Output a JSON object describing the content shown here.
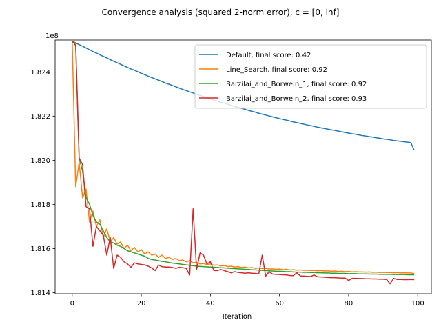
{
  "chart_data": {
    "type": "line",
    "title": "Convergence analysis (squared 2-norm error), c = [0, inf]",
    "xlabel": "Iteration",
    "ylabel": "",
    "y_offset_label": "1e8",
    "xlim": [
      -4.95,
      103.95
    ],
    "ylim": [
      1.81395,
      1.82545
    ],
    "x_ticks": [
      0,
      20,
      40,
      60,
      80,
      100
    ],
    "y_ticks": [
      1.814,
      1.816,
      1.818,
      1.82,
      1.822,
      1.824
    ],
    "y_tick_labels": [
      "1.814",
      "1.816",
      "1.818",
      "1.820",
      "1.822",
      "1.824"
    ],
    "legend_position": "top-right",
    "grid": false,
    "series": [
      {
        "name": "Default, final score: 0.42",
        "color": "#1f77b4",
        "x_start": 0,
        "values": [
          1.8254,
          1.82532,
          1.82524,
          1.82517,
          1.82509,
          1.82501,
          1.82493,
          1.82486,
          1.82478,
          1.82471,
          1.82464,
          1.82456,
          1.82449,
          1.82442,
          1.82435,
          1.82428,
          1.82421,
          1.82414,
          1.82408,
          1.82401,
          1.82394,
          1.82388,
          1.82381,
          1.82375,
          1.82369,
          1.82363,
          1.82357,
          1.8235,
          1.82345,
          1.82339,
          1.82333,
          1.82327,
          1.82321,
          1.82316,
          1.8231,
          1.82305,
          1.82299,
          1.82294,
          1.82289,
          1.82284,
          1.82278,
          1.82273,
          1.82268,
          1.82263,
          1.82259,
          1.82254,
          1.82249,
          1.82244,
          1.8224,
          1.82235,
          1.82231,
          1.82226,
          1.82222,
          1.82218,
          1.82213,
          1.82209,
          1.82205,
          1.82201,
          1.82197,
          1.82193,
          1.82189,
          1.82185,
          1.82182,
          1.82178,
          1.82174,
          1.82171,
          1.82167,
          1.82164,
          1.8216,
          1.82157,
          1.82154,
          1.8215,
          1.82147,
          1.82144,
          1.82141,
          1.82138,
          1.82135,
          1.82132,
          1.82129,
          1.82126,
          1.82123,
          1.8212,
          1.82118,
          1.82115,
          1.82112,
          1.8211,
          1.82107,
          1.82105,
          1.82102,
          1.821,
          1.82097,
          1.82095,
          1.82093,
          1.8209,
          1.82088,
          1.82086,
          1.82084,
          1.82082,
          1.8208,
          1.82045
        ]
      },
      {
        "name": "Line_Search, final score: 0.92",
        "color": "#ff7f0e",
        "x_start": 0,
        "values": [
          1.8254,
          1.8188,
          1.8199,
          1.8183,
          1.8187,
          1.8172,
          1.8177,
          1.817,
          1.8173,
          1.8165,
          1.8169,
          1.8163,
          1.8165,
          1.8162,
          1.8163,
          1.816,
          1.81615,
          1.8159,
          1.81605,
          1.81585,
          1.81595,
          1.81575,
          1.81585,
          1.8157,
          1.81575,
          1.8156,
          1.8157,
          1.81555,
          1.8156,
          1.8155,
          1.81555,
          1.81545,
          1.81548,
          1.8154,
          1.81545,
          1.81535,
          1.81538,
          1.8153,
          1.81532,
          1.81527,
          1.8153,
          1.81524,
          1.81526,
          1.81521,
          1.81523,
          1.81518,
          1.8152,
          1.81516,
          1.81518,
          1.81514,
          1.81516,
          1.81512,
          1.81514,
          1.8151,
          1.81512,
          1.81509,
          1.8151,
          1.81507,
          1.81508,
          1.81506,
          1.81507,
          1.81504,
          1.81506,
          1.81503,
          1.81504,
          1.81502,
          1.81503,
          1.81501,
          1.81502,
          1.815,
          1.81501,
          1.81499,
          1.815,
          1.81498,
          1.81499,
          1.81497,
          1.81498,
          1.81496,
          1.81497,
          1.81495,
          1.81496,
          1.81494,
          1.81495,
          1.81494,
          1.81494,
          1.81493,
          1.81494,
          1.81492,
          1.81493,
          1.81491,
          1.81492,
          1.81491,
          1.81491,
          1.8149,
          1.81491,
          1.81489,
          1.8149,
          1.81489,
          1.81489,
          1.81486
        ]
      },
      {
        "name": "Barzilai_and_Borwein_1, final score: 0.92",
        "color": "#2ca02c",
        "x_start": 0,
        "values": [
          1.8254,
          1.8253,
          1.8201,
          1.8195,
          1.8183,
          1.818,
          1.8175,
          1.8172,
          1.8171,
          1.8168,
          1.8165,
          1.8163,
          1.81625,
          1.81615,
          1.8161,
          1.816,
          1.8159,
          1.81585,
          1.8158,
          1.81575,
          1.8157,
          1.81565,
          1.81555,
          1.8155,
          1.81548,
          1.81545,
          1.81542,
          1.8154,
          1.81537,
          1.81534,
          1.81532,
          1.8153,
          1.81528,
          1.81526,
          1.81524,
          1.81522,
          1.8152,
          1.81519,
          1.81518,
          1.81517,
          1.81516,
          1.81515,
          1.81514,
          1.81513,
          1.81512,
          1.81511,
          1.8151,
          1.81509,
          1.81508,
          1.81507,
          1.81506,
          1.81505,
          1.81504,
          1.81503,
          1.81502,
          1.81501,
          1.815,
          1.81499,
          1.81498,
          1.81497,
          1.81497,
          1.81496,
          1.81495,
          1.81495,
          1.81494,
          1.81493,
          1.81493,
          1.81492,
          1.81492,
          1.81491,
          1.81491,
          1.8149,
          1.8149,
          1.81489,
          1.81489,
          1.81488,
          1.81488,
          1.81487,
          1.81487,
          1.81487,
          1.81486,
          1.81486,
          1.81486,
          1.81485,
          1.81485,
          1.81485,
          1.81484,
          1.81484,
          1.81484,
          1.81483,
          1.81483,
          1.81483,
          1.81483,
          1.81482,
          1.81482,
          1.81482,
          1.81482,
          1.81481,
          1.81481,
          1.81481
        ]
      },
      {
        "name": "Barzilai_and_Borwein_2, final score: 0.93",
        "color": "#d62728",
        "x_start": 0,
        "values": [
          1.8254,
          1.8252,
          1.8201,
          1.8198,
          1.8179,
          1.8178,
          1.8161,
          1.817,
          1.8168,
          1.8166,
          1.8157,
          1.8165,
          1.8151,
          1.8157,
          1.8156,
          1.8154,
          1.8153,
          1.81515,
          1.81535,
          1.8153,
          1.81528,
          1.81526,
          1.8152,
          1.81512,
          1.815,
          1.81525,
          1.81518,
          1.81516,
          1.81516,
          1.81514,
          1.8151,
          1.81515,
          1.81513,
          1.8151,
          1.8148,
          1.8178,
          1.81505,
          1.8158,
          1.8157,
          1.8153,
          1.8154,
          1.815,
          1.815,
          1.81505,
          1.815,
          1.81495,
          1.8149,
          1.81495,
          1.81492,
          1.8149,
          1.81488,
          1.8149,
          1.81488,
          1.81487,
          1.81485,
          1.8157,
          1.81475,
          1.81495,
          1.81484,
          1.81483,
          1.81482,
          1.81481,
          1.8148,
          1.81478,
          1.81477,
          1.8149,
          1.81476,
          1.81475,
          1.81474,
          1.81473,
          1.8148,
          1.81472,
          1.81471,
          1.8147,
          1.81469,
          1.81468,
          1.81468,
          1.81467,
          1.81466,
          1.81466,
          1.81455,
          1.81465,
          1.81465,
          1.81464,
          1.81464,
          1.81463,
          1.81463,
          1.81462,
          1.81462,
          1.81461,
          1.81461,
          1.8146,
          1.8144,
          1.81465,
          1.8146,
          1.8146,
          1.81459,
          1.81459,
          1.8146,
          1.81459
        ]
      }
    ]
  }
}
